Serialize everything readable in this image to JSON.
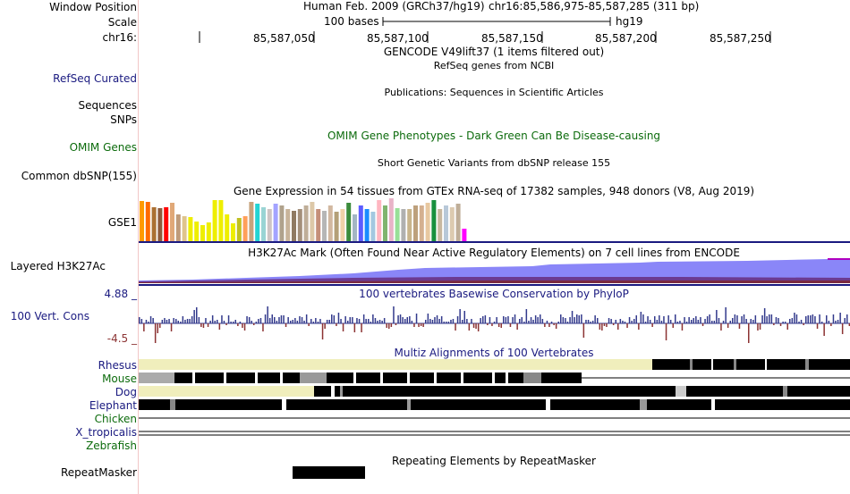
{
  "labels": {
    "window_position": "Window Position",
    "scale": "Scale",
    "chrom": "chr16:",
    "refseq": "RefSeq Curated",
    "sequences": "Sequences",
    "snps": "SNPs",
    "omim": "OMIM Genes",
    "dbsnp": "Common dbSNP(155)",
    "gse1": "GSE1",
    "h3k27ac": "Layered H3K27Ac",
    "cons_max": "4.88 _",
    "cons": "100 Vert. Cons",
    "cons_min": "-4.5 _",
    "species": [
      "Rhesus",
      "Mouse",
      "Dog",
      "Elephant",
      "Chicken",
      "X_tropicalis",
      "Zebrafish"
    ],
    "repeatmasker": "RepeatMasker"
  },
  "header": {
    "assembly": "Human Feb. 2009 (GRCh37/hg19)",
    "position": "chr16:85,586,975-85,587,285 (311 bp)",
    "scale_text": "100 bases",
    "scale_db": "hg19",
    "ticks": [
      "85,587,050",
      "85,587,100",
      "85,587,150",
      "85,587,200",
      "85,587,250"
    ]
  },
  "tracks": {
    "gencode": "GENCODE V49lift37 (1 items filtered out)",
    "refseq": "RefSeq genes from NCBI",
    "publications": "Publications: Sequences in Scientific Articles",
    "omim": "OMIM Gene Phenotypes - Dark Green Can Be Disease-causing",
    "dbsnp": "Short Genetic Variants from dbSNP release 155",
    "gtex": "Gene Expression in 54 tissues from GTEx RNA-seq of 17382 samples, 948 donors (V8, Aug 2019)",
    "h3k27ac": "H3K27Ac Mark (Often Found Near Active Regulatory Elements) on 7 cell lines from ENCODE",
    "phylop": "100 vertebrates Basewise Conservation by PhyloP",
    "multiz": "Multiz Alignments of 100 Vertebrates",
    "repeatmasker": "Repeating Elements by RepeatMasker"
  },
  "colors": {
    "navy": "#1a1a80",
    "green": "#0c6b0c",
    "h3k27ac_fill": "#8a86f8",
    "phylop_pos": "#333a8c",
    "phylop_neg": "#8c3333",
    "multiz_pale": "#f0eebc"
  },
  "gtex_colors": [
    "#ff9a00",
    "#ff6a00",
    "#ab7032",
    "#8e5b3c",
    "#ff0000",
    "#e0a878",
    "#bf9b7a",
    "#dfc48c",
    "#eeee00",
    "#eeee00",
    "#eeee00",
    "#eeee00",
    "#eeee00",
    "#eeee00",
    "#eeee00",
    "#eeee00",
    "#c0c020",
    "#ff9f5a",
    "#c7a37d",
    "#22d4d4",
    "#9ad4d4",
    "#cec4c4",
    "#a3a3ff",
    "#b0a28c",
    "#c8b49a",
    "#8f7a62",
    "#a38f7a",
    "#bfae98",
    "#ddc8a8",
    "#c58f7a",
    "#b6b6b6",
    "#d2b8a0",
    "#b4a078",
    "#f0d2a8",
    "#3c8c3c",
    "#a3b6c4",
    "#5c5cff",
    "#1a8cff",
    "#a3c8e0",
    "#ffb6c1",
    "#7fb46e",
    "#e8b4c8",
    "#98e098",
    "#b0b0b0",
    "#c8b48c",
    "#bda07c",
    "#d4b090",
    "#e8c8a0",
    "#18903e",
    "#c8b8a0",
    "#b8c8d8",
    "#dccab0",
    "#bfae98",
    "#ff00ff"
  ]
}
